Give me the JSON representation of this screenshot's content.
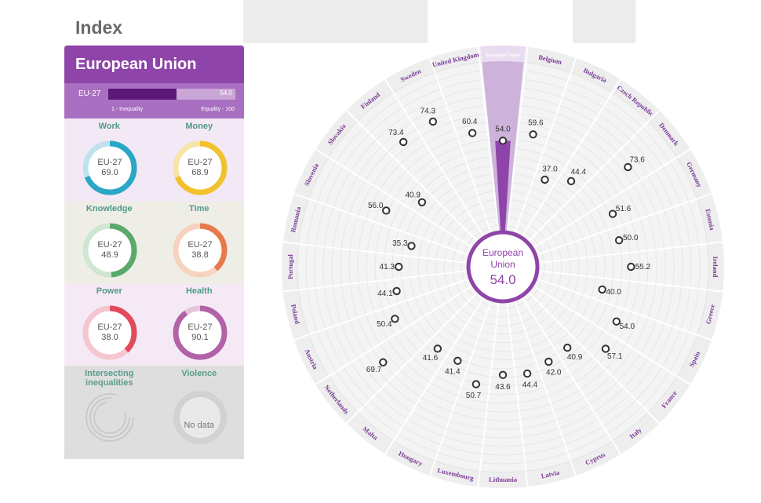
{
  "page": {
    "title": "Index"
  },
  "panel": {
    "heading": "European Union",
    "bar": {
      "label": "EU-27",
      "value": 54.0,
      "value_text": "54.0",
      "min_label": "1 - Inequality",
      "max_label": "Equality - 100"
    },
    "domains": [
      {
        "name": "Work",
        "label": "EU-27",
        "value": 69.0,
        "value_text": "69.0",
        "color": "#2aa7c6",
        "track": "#bfe2ee",
        "bg": "#f3e8f6"
      },
      {
        "name": "Money",
        "label": "EU-27",
        "value": 68.9,
        "value_text": "68.9",
        "color": "#f2c12e",
        "track": "#f8e4a6",
        "bg": "#f3e8f6"
      },
      {
        "name": "Knowledge",
        "label": "EU-27",
        "value": 48.9,
        "value_text": "48.9",
        "color": "#5aa96a",
        "track": "#cfe6d2",
        "bg": "#eeeee6"
      },
      {
        "name": "Time",
        "label": "EU-27",
        "value": 38.8,
        "value_text": "38.8",
        "color": "#e8794a",
        "track": "#f6d2bf",
        "bg": "#eeeee6"
      },
      {
        "name": "Power",
        "label": "EU-27",
        "value": 38.0,
        "value_text": "38.0",
        "color": "#e04a5a",
        "track": "#f5c6cf",
        "bg": "#f5e9f5"
      },
      {
        "name": "Health",
        "label": "EU-27",
        "value": 90.1,
        "value_text": "90.1",
        "color": "#b263a8",
        "track": "#e4c6df",
        "bg": "#f5e9f5"
      }
    ],
    "intersecting": {
      "name": "Intersecting inequalities"
    },
    "violence": {
      "name": "Violence",
      "text": "No data"
    }
  },
  "chart_data": {
    "type": "radial-dot",
    "scale_min": 1,
    "scale_max": 100,
    "center": {
      "line1": "European",
      "line2": "Union",
      "value": 54.0,
      "value_text": "54.0"
    },
    "countries": [
      {
        "name": "European Union",
        "value": 54.0,
        "label": "54.0",
        "highlight": true
      },
      {
        "name": "Belgium",
        "value": 59.6,
        "label": "59.6"
      },
      {
        "name": "Bulgaria",
        "value": 37.0,
        "label": "37.0"
      },
      {
        "name": "Czech Republic",
        "value": 44.4,
        "label": "44.4"
      },
      {
        "name": "Denmark",
        "value": 73.6,
        "label": "73.6"
      },
      {
        "name": "Germany",
        "value": 51.6,
        "label": "51.6"
      },
      {
        "name": "Estonia",
        "value": 50.0,
        "label": "50.0"
      },
      {
        "name": "Ireland",
        "value": 55.2,
        "label": "55.2"
      },
      {
        "name": "Greece",
        "value": 40.0,
        "label": "40.0"
      },
      {
        "name": "Spain",
        "value": 54.0,
        "label": "54.0"
      },
      {
        "name": "France",
        "value": 57.1,
        "label": "57.1"
      },
      {
        "name": "Italy",
        "value": 40.9,
        "label": "40.9"
      },
      {
        "name": "Cyprus",
        "value": 42.0,
        "label": "42.0"
      },
      {
        "name": "Latvia",
        "value": 44.4,
        "label": "44.4"
      },
      {
        "name": "Lithuania",
        "value": 43.6,
        "label": "43.6"
      },
      {
        "name": "Luxembourg",
        "value": 50.7,
        "label": "50.7"
      },
      {
        "name": "Hungary",
        "value": 41.4,
        "label": "41.4"
      },
      {
        "name": "Malta",
        "value": 41.6,
        "label": "41.6"
      },
      {
        "name": "Netherlands",
        "value": 69.7,
        "label": "69.7"
      },
      {
        "name": "Austria",
        "value": 50.4,
        "label": "50.4"
      },
      {
        "name": "Poland",
        "value": 44.1,
        "label": "44.1"
      },
      {
        "name": "Portugal",
        "value": 41.3,
        "label": "41.3"
      },
      {
        "name": "Romania",
        "value": 35.3,
        "label": "35.3"
      },
      {
        "name": "Slovenia",
        "value": 56.0,
        "label": "56.0"
      },
      {
        "name": "Slovakia",
        "value": 40.9,
        "label": "40.9"
      },
      {
        "name": "Finland",
        "value": 73.4,
        "label": "73.4"
      },
      {
        "name": "Sweden",
        "value": 74.3,
        "label": "74.3"
      },
      {
        "name": "United Kingdom",
        "value": 60.4,
        "label": "60.4"
      }
    ],
    "colors": {
      "accent": "#8e44a8",
      "accent_light": "#cdb3dc",
      "ring": "#e6e6e6",
      "rim": "#eeeeee",
      "label": "#7a3a96"
    }
  }
}
